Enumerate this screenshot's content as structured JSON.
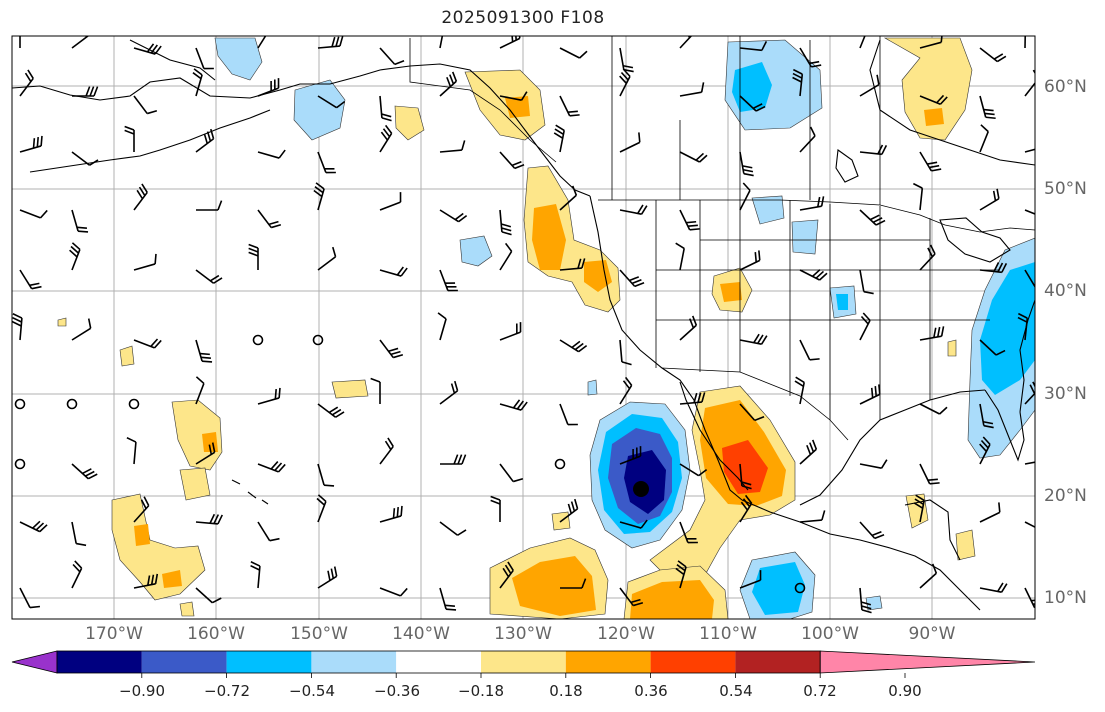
{
  "map": {
    "title": "2025091300 F108",
    "projection": "PlateCarree",
    "extent": {
      "lon_min": -180,
      "lon_max": -80,
      "lat_min": 7,
      "lat_max": 64
    },
    "gridlines": true,
    "field": "shaded anomaly (dimensionless)",
    "lat_labels": [
      "60°N",
      "50°N",
      "40°N",
      "30°N",
      "20°N",
      "10°N"
    ],
    "lon_labels": [
      "170°W",
      "160°W",
      "150°W",
      "140°W",
      "130°W",
      "120°W",
      "110°W",
      "100°W",
      "90°W"
    ],
    "features": {
      "strong_negative_center": {
        "lon": -118,
        "lat": 21,
        "approx_value": -0.9,
        "marker": "dot"
      },
      "positive_max_gulf_of_california": {
        "lon": -109,
        "lat": 24,
        "approx_value": 0.6
      }
    }
  },
  "colorbar": {
    "extend": "both",
    "ticks": [
      "−0.90",
      "−0.72",
      "−0.54",
      "−0.36",
      "−0.18",
      "0.18",
      "0.36",
      "0.54",
      "0.72",
      "0.90"
    ],
    "levels": [
      -0.9,
      -0.72,
      -0.54,
      -0.36,
      -0.18,
      0.18,
      0.36,
      0.54,
      0.72,
      0.9
    ],
    "colors": [
      "#9932cc",
      "#000080",
      "#3b5ac8",
      "#00bfff",
      "#aadcfa",
      "#ffffff",
      "#fde68a",
      "#ffa500",
      "#ff4000",
      "#b22222",
      "#ff85a8"
    ]
  }
}
